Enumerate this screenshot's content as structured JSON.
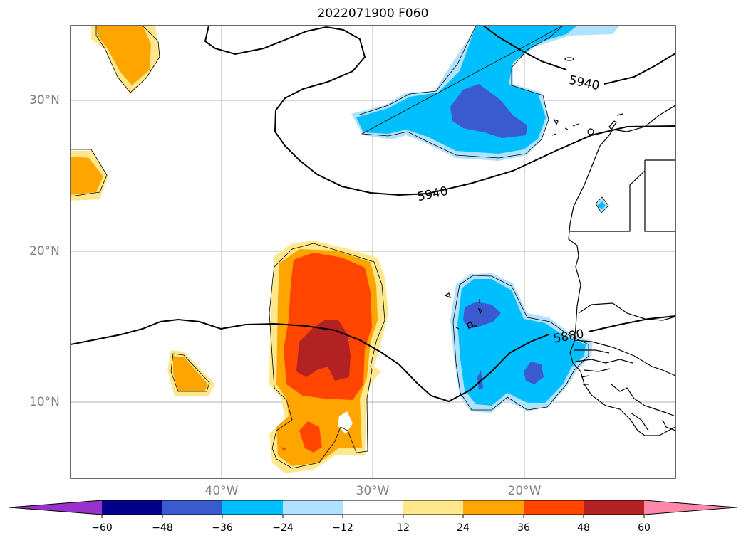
{
  "title": "2022071900 F060",
  "lat_labels": [
    "30°N",
    "20°N",
    "10°N"
  ],
  "lon_labels": [
    "40°W",
    "30°W",
    "20°W"
  ],
  "contours": [
    {
      "value": "5940",
      "label": "5940"
    },
    {
      "value": "5940",
      "label": "5940"
    },
    {
      "value": "5880",
      "label": "5880"
    }
  ],
  "colorbar": {
    "ticks": [
      "−60",
      "−48",
      "−36",
      "−24",
      "−12",
      "12",
      "24",
      "36",
      "48",
      "60"
    ],
    "colors": [
      "#9932cc",
      "#00008b",
      "#3a5bcf",
      "#00bfff",
      "#b0e2ff",
      "#ffffff",
      "#ffe88c",
      "#ffa500",
      "#ff4500",
      "#b22222",
      "#ff88aa"
    ]
  },
  "field_colors": {
    "light_yellow": "#ffe88c",
    "orange": "#ffa500",
    "red_orange": "#ff4500",
    "dark_red": "#b22222",
    "light_blue": "#b0e2ff",
    "sky_blue": "#00bfff",
    "royal_blue": "#3a5bcf"
  }
}
